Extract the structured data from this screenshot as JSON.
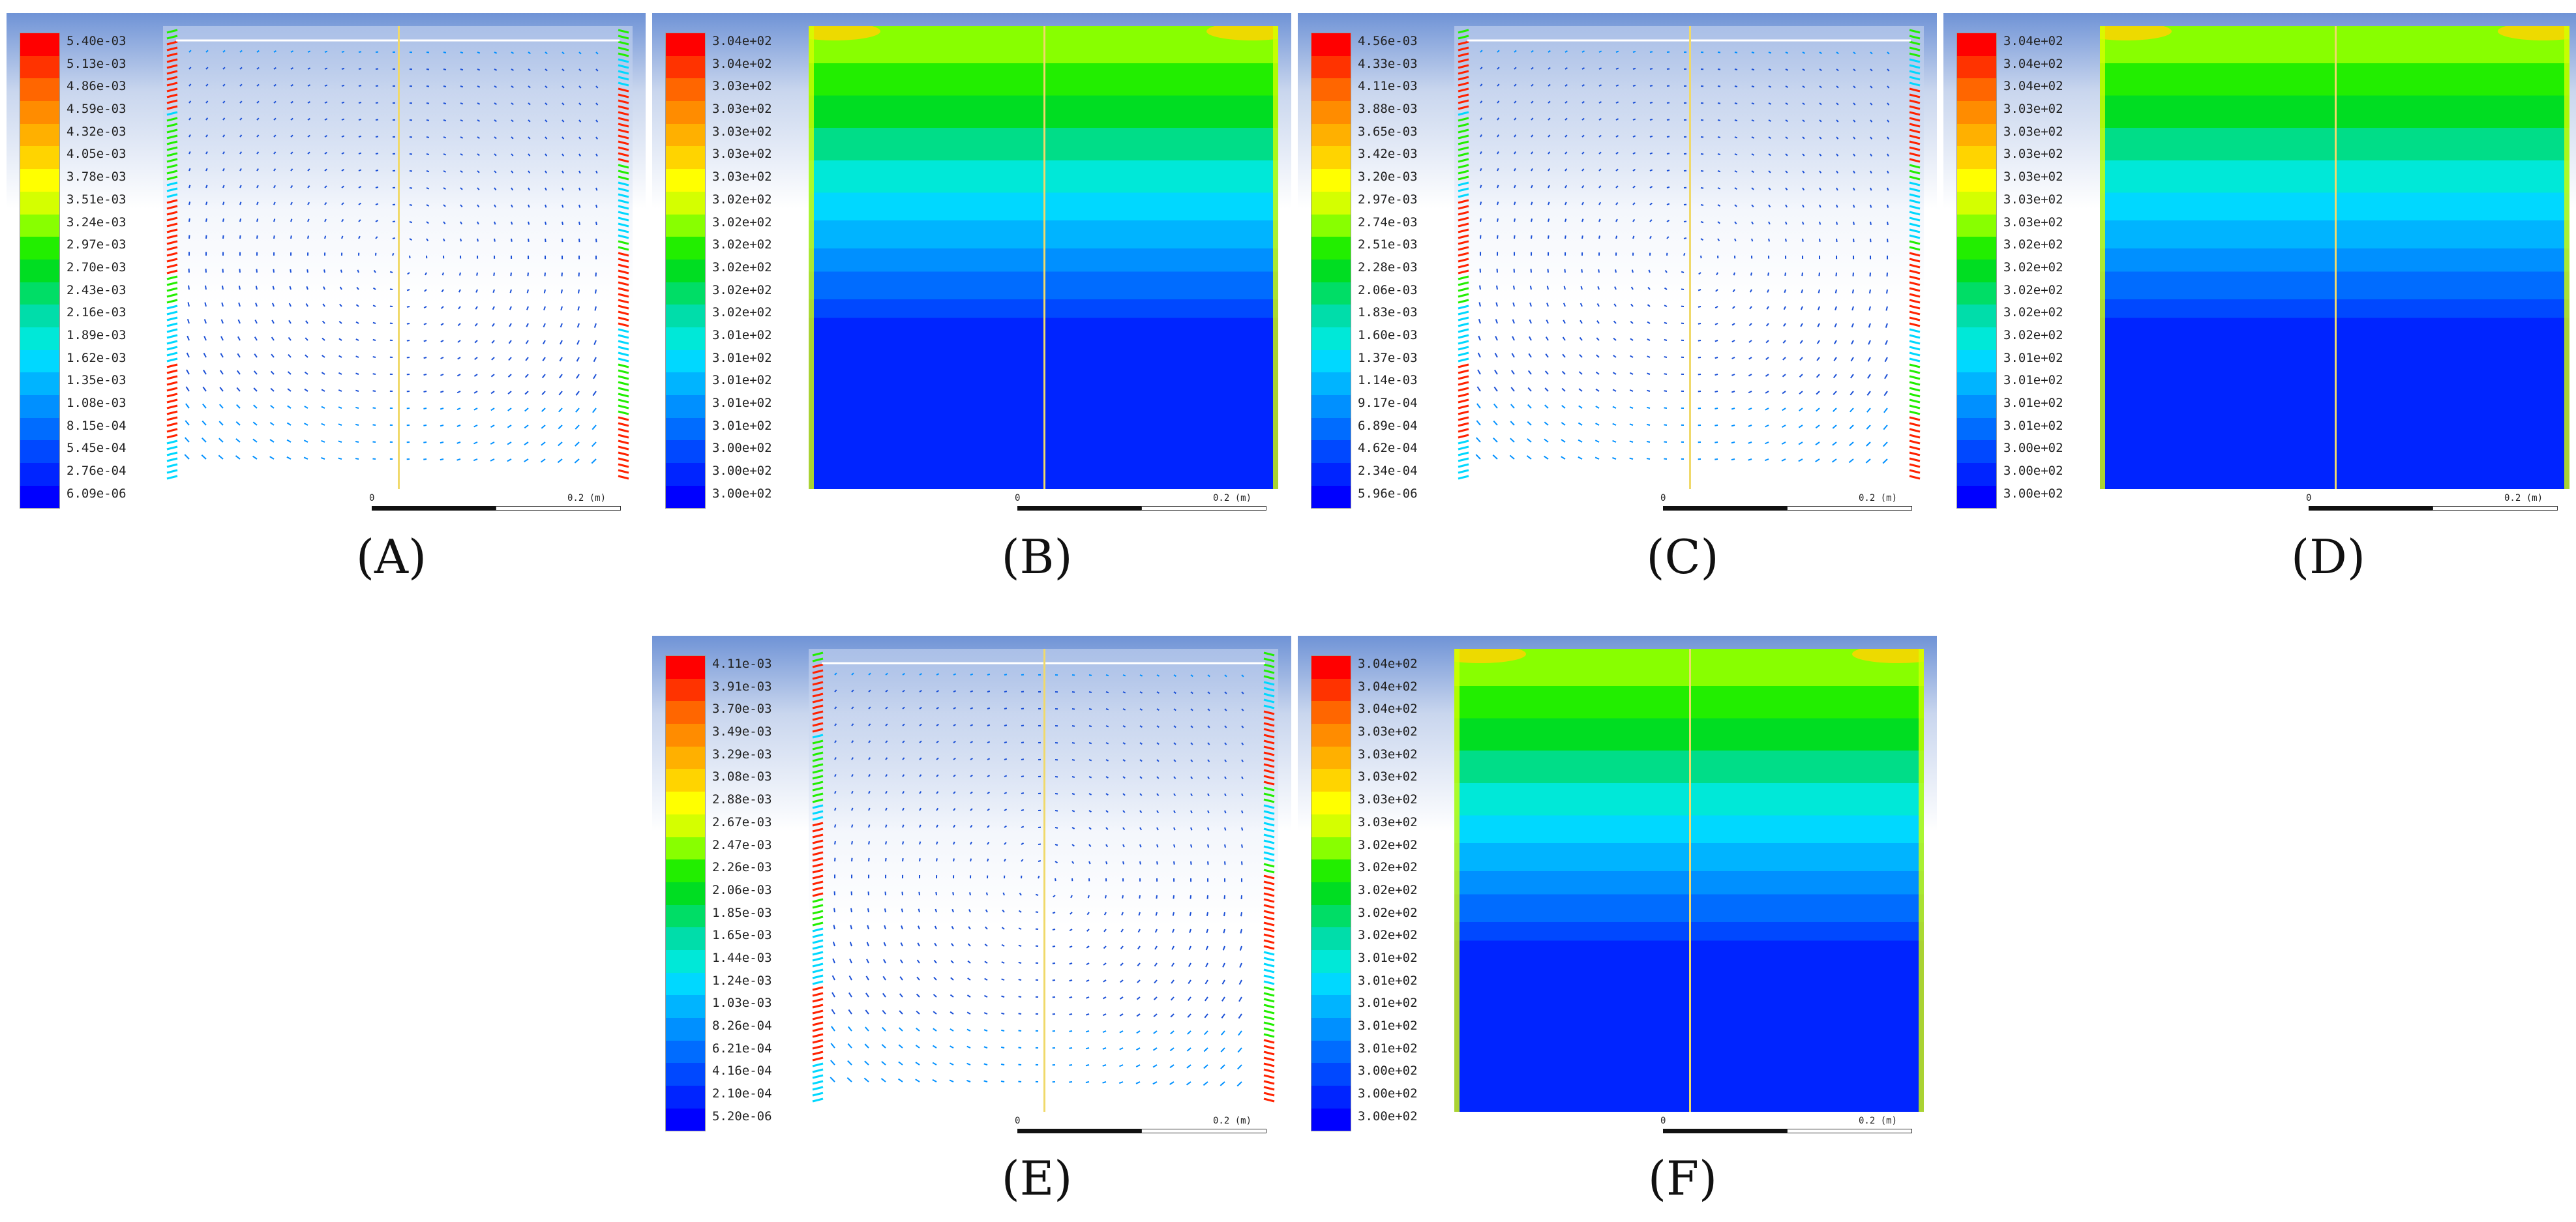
{
  "figure": {
    "panels": [
      {
        "id": "A",
        "kind": "vector",
        "caption": "(A)",
        "legend": [
          "5.40e-03",
          "5.13e-03",
          "4.86e-03",
          "4.59e-03",
          "4.32e-03",
          "4.05e-03",
          "3.78e-03",
          "3.51e-03",
          "3.24e-03",
          "2.97e-03",
          "2.70e-03",
          "2.43e-03",
          "2.16e-03",
          "1.89e-03",
          "1.62e-03",
          "1.35e-03",
          "1.08e-03",
          "8.15e-04",
          "5.45e-04",
          "2.76e-04",
          "6.09e-06"
        ],
        "scale": {
          "start": "0",
          "end": "0.2 (m)"
        }
      },
      {
        "id": "B",
        "kind": "contour",
        "caption": "(B)",
        "legend": [
          "3.04e+02",
          "3.04e+02",
          "3.03e+02",
          "3.03e+02",
          "3.03e+02",
          "3.03e+02",
          "3.03e+02",
          "3.02e+02",
          "3.02e+02",
          "3.02e+02",
          "3.02e+02",
          "3.02e+02",
          "3.02e+02",
          "3.01e+02",
          "3.01e+02",
          "3.01e+02",
          "3.01e+02",
          "3.01e+02",
          "3.00e+02",
          "3.00e+02",
          "3.00e+02"
        ],
        "scale": {
          "start": "0",
          "end": "0.2 (m)"
        }
      },
      {
        "id": "C",
        "kind": "vector",
        "caption": "(C)",
        "legend": [
          "4.56e-03",
          "4.33e-03",
          "4.11e-03",
          "3.88e-03",
          "3.65e-03",
          "3.42e-03",
          "3.20e-03",
          "2.97e-03",
          "2.74e-03",
          "2.51e-03",
          "2.28e-03",
          "2.06e-03",
          "1.83e-03",
          "1.60e-03",
          "1.37e-03",
          "1.14e-03",
          "9.17e-04",
          "6.89e-04",
          "4.62e-04",
          "2.34e-04",
          "5.96e-06"
        ],
        "scale": {
          "start": "0",
          "end": "0.2 (m)"
        }
      },
      {
        "id": "D",
        "kind": "contour",
        "caption": "(D)",
        "legend": [
          "3.04e+02",
          "3.04e+02",
          "3.04e+02",
          "3.03e+02",
          "3.03e+02",
          "3.03e+02",
          "3.03e+02",
          "3.03e+02",
          "3.03e+02",
          "3.02e+02",
          "3.02e+02",
          "3.02e+02",
          "3.02e+02",
          "3.02e+02",
          "3.01e+02",
          "3.01e+02",
          "3.01e+02",
          "3.01e+02",
          "3.00e+02",
          "3.00e+02",
          "3.00e+02"
        ],
        "scale": {
          "start": "0",
          "end": "0.2 (m)"
        }
      },
      {
        "id": "E",
        "kind": "vector",
        "caption": "(E)",
        "legend": [
          "4.11e-03",
          "3.91e-03",
          "3.70e-03",
          "3.49e-03",
          "3.29e-03",
          "3.08e-03",
          "2.88e-03",
          "2.67e-03",
          "2.47e-03",
          "2.26e-03",
          "2.06e-03",
          "1.85e-03",
          "1.65e-03",
          "1.44e-03",
          "1.24e-03",
          "1.03e-03",
          "8.26e-04",
          "6.21e-04",
          "4.16e-04",
          "2.10e-04",
          "5.20e-06"
        ],
        "scale": {
          "start": "0",
          "end": "0.2 (m)"
        }
      },
      {
        "id": "F",
        "kind": "contour",
        "caption": "(F)",
        "legend": [
          "3.04e+02",
          "3.04e+02",
          "3.04e+02",
          "3.03e+02",
          "3.03e+02",
          "3.03e+02",
          "3.03e+02",
          "3.03e+02",
          "3.02e+02",
          "3.02e+02",
          "3.02e+02",
          "3.02e+02",
          "3.02e+02",
          "3.01e+02",
          "3.01e+02",
          "3.01e+02",
          "3.01e+02",
          "3.01e+02",
          "3.00e+02",
          "3.00e+02",
          "3.00e+02"
        ],
        "scale": {
          "start": "0",
          "end": "0.2 (m)"
        }
      }
    ],
    "colormap": [
      "#ff0000",
      "#ff3300",
      "#ff6600",
      "#ff8c00",
      "#ffb000",
      "#ffd400",
      "#ffff00",
      "#d4ff00",
      "#88ff00",
      "#22ee00",
      "#00dd22",
      "#00dd66",
      "#00ddaa",
      "#00e8d8",
      "#00d8ff",
      "#00b4ff",
      "#0090ff",
      "#006cff",
      "#0048ff",
      "#0024ff",
      "#0000ff"
    ]
  }
}
